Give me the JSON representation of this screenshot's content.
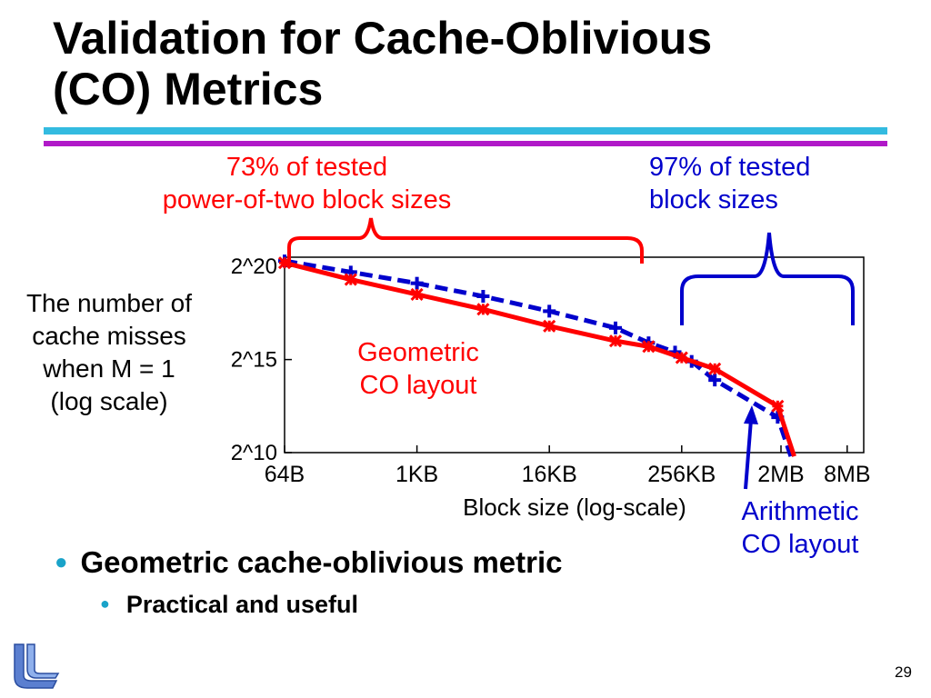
{
  "slide": {
    "title_line1": "Validation for Cache-Oblivious",
    "title_line2": "(CO) Metrics",
    "page_number": "29",
    "bullets": {
      "level1": "Geometric cache-oblivious metric",
      "level2": "Practical and useful"
    },
    "annotations": {
      "red_line1": "73% of tested",
      "red_line2": "power-of-two block sizes",
      "blue_line1": "97% of tested",
      "blue_line2": "block sizes",
      "ylabel_line1": "The number of",
      "ylabel_line2": "cache misses",
      "ylabel_line3": "when M = 1",
      "ylabel_line4": "(log scale)",
      "geo_line1": "Geometric",
      "geo_line2": "CO layout",
      "arith_line1": "Arithmetic",
      "arith_line2": "CO layout"
    },
    "colors": {
      "title_rule_top": "#33bbe0",
      "title_rule_bottom": "#b019c8",
      "geometric": "#ff0000",
      "arithmetic": "#0000cc",
      "bullet": "#1aa3c9"
    },
    "logo_icon": "institution-logo-icon"
  },
  "chart_data": {
    "type": "line",
    "title": "",
    "xlabel": "Block size (log-scale)",
    "ylabel": "",
    "x_scale": "log2",
    "y_scale": "log2",
    "xlim": [
      6,
      23
    ],
    "ylim": [
      10,
      20.5
    ],
    "x_ticks": [
      {
        "value": 6,
        "label": "64B"
      },
      {
        "value": 10,
        "label": "1KB"
      },
      {
        "value": 14,
        "label": "16KB"
      },
      {
        "value": 18,
        "label": "256KB"
      },
      {
        "value": 21,
        "label": "2MB"
      },
      {
        "value": 23,
        "label": "8MB"
      }
    ],
    "y_ticks": [
      {
        "value": 20,
        "label": "2^20"
      },
      {
        "value": 15,
        "label": "2^15"
      },
      {
        "value": 10,
        "label": "2^10"
      }
    ],
    "grid": false,
    "series": [
      {
        "name": "Geometric CO layout",
        "color": "#ff0000",
        "marker": "star",
        "style": "solid",
        "points": [
          [
            6,
            20.2
          ],
          [
            8,
            19.3
          ],
          [
            10,
            18.5
          ],
          [
            12,
            17.7
          ],
          [
            14,
            16.8
          ],
          [
            16,
            16.0
          ],
          [
            17,
            15.7
          ],
          [
            18,
            15.1
          ],
          [
            19,
            14.5
          ],
          [
            20.9,
            12.5
          ],
          [
            21.4,
            9.8
          ]
        ]
      },
      {
        "name": "Arithmetic CO layout",
        "color": "#0000cc",
        "marker": "plus",
        "style": "dashed",
        "points": [
          [
            6,
            20.3
          ],
          [
            8,
            19.7
          ],
          [
            10,
            19.1
          ],
          [
            12,
            18.4
          ],
          [
            14,
            17.6
          ],
          [
            16,
            16.7
          ],
          [
            17,
            15.9
          ],
          [
            17.8,
            15.4
          ],
          [
            18.3,
            14.9
          ],
          [
            19,
            13.9
          ],
          [
            20.9,
            11.9
          ],
          [
            21.3,
            9.8
          ]
        ]
      }
    ]
  }
}
